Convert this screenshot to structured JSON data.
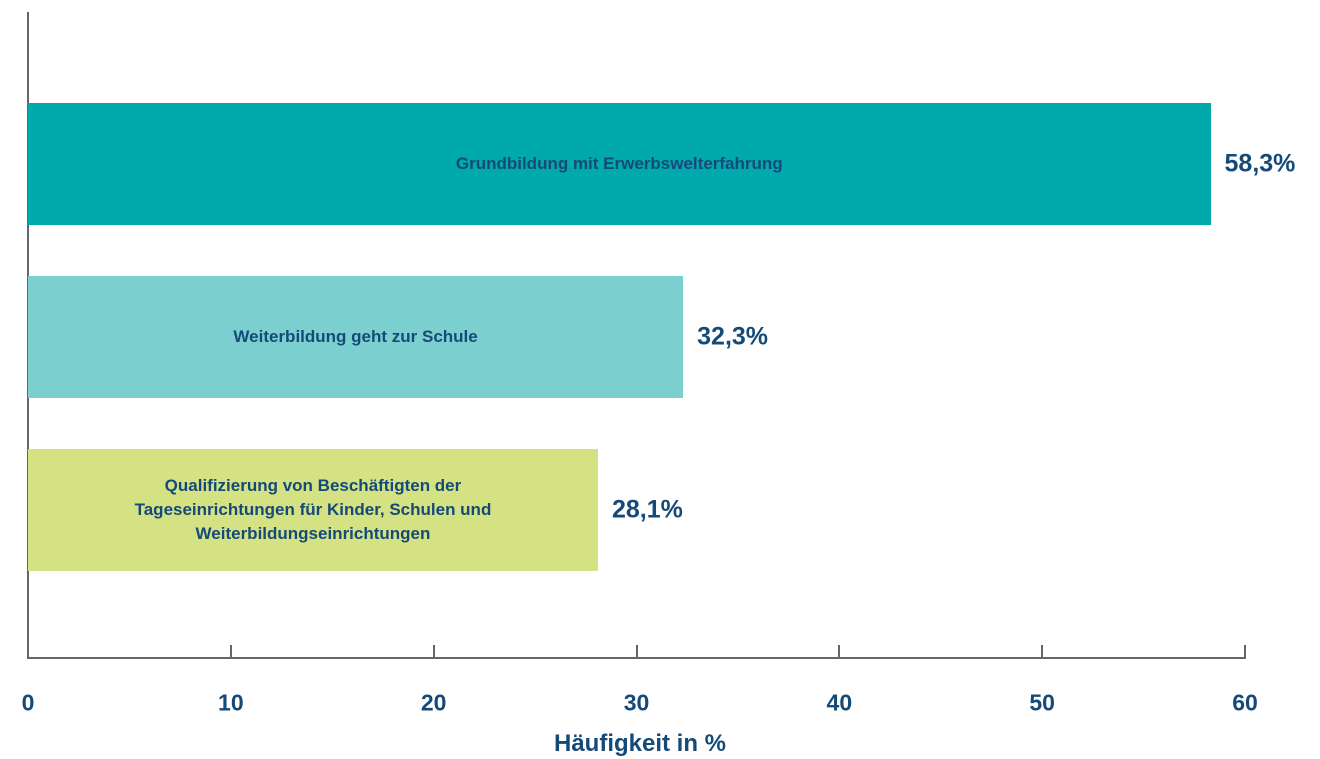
{
  "chart_data": {
    "type": "bar",
    "orientation": "horizontal",
    "categories": [
      "Grundbildung mit Erwerbswelterfahrung",
      "Weiterbildung geht zur Schule",
      "Qualifizierung von Beschäftigten der\nTageseinrichtungen für Kinder, Schulen und\nWeiterbildungseinrichtungen"
    ],
    "values": [
      58.3,
      32.3,
      28.1
    ],
    "value_labels": [
      "58,3%",
      "32,3%",
      "28,1%"
    ],
    "colors": [
      "#00a9ab",
      "#7ccfcf",
      "#d4e283"
    ],
    "xlabel": "Häufigkeit in %",
    "xlim": [
      0,
      60
    ],
    "xticks": [
      0,
      10,
      20,
      30,
      40,
      50,
      60
    ]
  }
}
